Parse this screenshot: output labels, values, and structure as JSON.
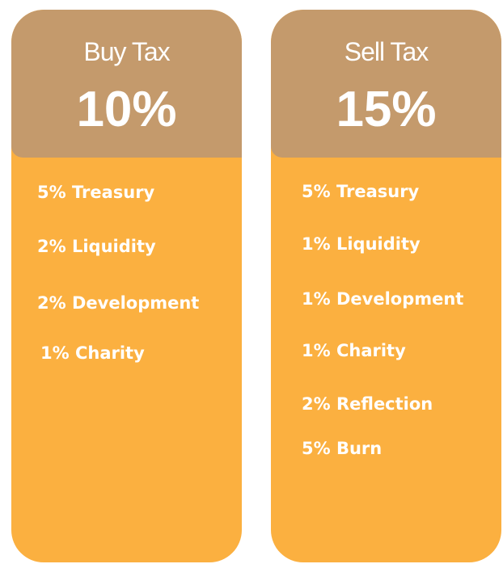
{
  "cards": [
    {
      "title": "Buy Tax",
      "total": "10%",
      "items": [
        "5% Treasury",
        "2% Liquidity",
        "2% Development",
        "1% Charity"
      ]
    },
    {
      "title": "Sell Tax",
      "total": "15%",
      "items": [
        "5% Treasury",
        "1% Liquidity",
        "1% Development",
        "1% Charity",
        "2% Reflection",
        "5% Burn"
      ]
    }
  ]
}
